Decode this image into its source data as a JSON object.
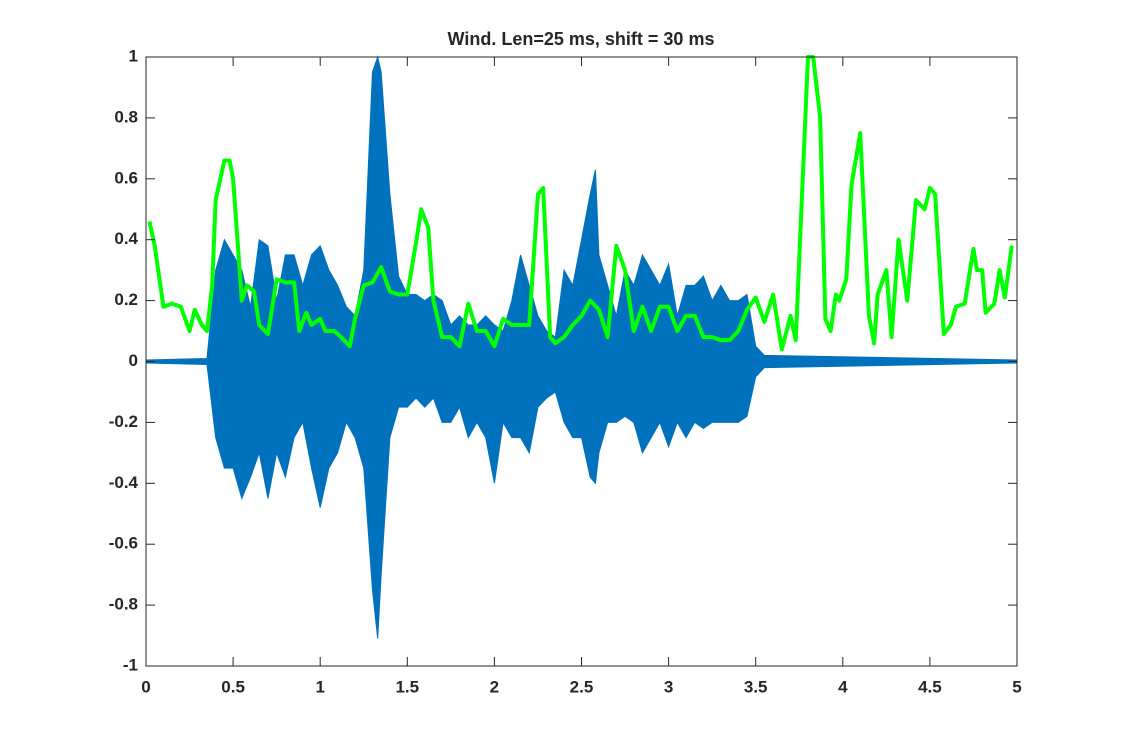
{
  "chart_data": {
    "type": "line",
    "title": "Wind. Len=25 ms, shift = 30 ms",
    "xlim": [
      0,
      5
    ],
    "ylim": [
      -1,
      1
    ],
    "xticks": [
      0,
      0.5,
      1,
      1.5,
      2,
      2.5,
      3,
      3.5,
      4,
      4.5,
      5
    ],
    "yticks": [
      -1,
      -0.8,
      -0.6,
      -0.4,
      -0.2,
      0,
      0.2,
      0.4,
      0.6,
      0.8,
      1
    ],
    "series": [
      {
        "style": "envelope",
        "color": "#0072bd",
        "x": [
          0,
          0.35,
          0.4,
          0.45,
          0.5,
          0.55,
          0.6,
          0.65,
          0.7,
          0.75,
          0.8,
          0.85,
          0.9,
          0.95,
          1.0,
          1.05,
          1.1,
          1.15,
          1.2,
          1.25,
          1.3,
          1.33,
          1.35,
          1.4,
          1.45,
          1.5,
          1.55,
          1.6,
          1.65,
          1.7,
          1.75,
          1.8,
          1.85,
          1.9,
          1.95,
          2.0,
          2.05,
          2.1,
          2.15,
          2.2,
          2.25,
          2.3,
          2.35,
          2.4,
          2.45,
          2.5,
          2.55,
          2.58,
          2.6,
          2.65,
          2.7,
          2.75,
          2.8,
          2.85,
          2.9,
          2.95,
          3.0,
          3.05,
          3.1,
          3.15,
          3.2,
          3.25,
          3.3,
          3.35,
          3.4,
          3.45,
          3.5,
          3.55,
          5.0
        ],
        "upper": [
          0.005,
          0.01,
          0.3,
          0.4,
          0.35,
          0.3,
          0.18,
          0.4,
          0.38,
          0.2,
          0.35,
          0.35,
          0.25,
          0.35,
          0.38,
          0.3,
          0.25,
          0.18,
          0.15,
          0.3,
          0.95,
          1.0,
          0.95,
          0.55,
          0.28,
          0.22,
          0.22,
          0.2,
          0.22,
          0.2,
          0.12,
          0.15,
          0.12,
          0.12,
          0.15,
          0.12,
          0.1,
          0.2,
          0.35,
          0.25,
          0.15,
          0.1,
          0.08,
          0.3,
          0.25,
          0.4,
          0.55,
          0.63,
          0.35,
          0.25,
          0.15,
          0.3,
          0.25,
          0.35,
          0.3,
          0.25,
          0.32,
          0.15,
          0.25,
          0.25,
          0.28,
          0.2,
          0.25,
          0.2,
          0.2,
          0.22,
          0.05,
          0.02,
          0.005
        ],
        "lower": [
          -0.005,
          -0.01,
          -0.25,
          -0.35,
          -0.35,
          -0.45,
          -0.38,
          -0.3,
          -0.45,
          -0.3,
          -0.38,
          -0.25,
          -0.2,
          -0.35,
          -0.48,
          -0.35,
          -0.3,
          -0.2,
          -0.25,
          -0.35,
          -0.75,
          -0.91,
          -0.7,
          -0.25,
          -0.15,
          -0.15,
          -0.12,
          -0.15,
          -0.12,
          -0.2,
          -0.2,
          -0.15,
          -0.25,
          -0.2,
          -0.25,
          -0.4,
          -0.2,
          -0.25,
          -0.25,
          -0.3,
          -0.15,
          -0.12,
          -0.1,
          -0.2,
          -0.25,
          -0.25,
          -0.38,
          -0.4,
          -0.3,
          -0.2,
          -0.2,
          -0.18,
          -0.2,
          -0.3,
          -0.25,
          -0.2,
          -0.28,
          -0.2,
          -0.25,
          -0.2,
          -0.22,
          -0.2,
          -0.2,
          -0.2,
          -0.2,
          -0.18,
          -0.05,
          -0.02,
          -0.005
        ]
      },
      {
        "style": "line",
        "color": "#00ff00",
        "x": [
          0.02,
          0.05,
          0.1,
          0.15,
          0.2,
          0.25,
          0.28,
          0.32,
          0.35,
          0.38,
          0.4,
          0.45,
          0.48,
          0.5,
          0.55,
          0.58,
          0.62,
          0.65,
          0.7,
          0.75,
          0.8,
          0.85,
          0.88,
          0.92,
          0.95,
          1.0,
          1.03,
          1.08,
          1.12,
          1.17,
          1.2,
          1.25,
          1.3,
          1.35,
          1.4,
          1.45,
          1.5,
          1.55,
          1.58,
          1.62,
          1.65,
          1.7,
          1.75,
          1.8,
          1.85,
          1.9,
          1.95,
          2.0,
          2.05,
          2.1,
          2.15,
          2.2,
          2.25,
          2.28,
          2.32,
          2.35,
          2.4,
          2.45,
          2.5,
          2.55,
          2.6,
          2.65,
          2.7,
          2.75,
          2.8,
          2.85,
          2.9,
          2.95,
          3.0,
          3.05,
          3.1,
          3.15,
          3.2,
          3.25,
          3.3,
          3.35,
          3.4,
          3.45,
          3.5,
          3.55,
          3.6,
          3.65,
          3.7,
          3.73,
          3.8,
          3.83,
          3.87,
          3.9,
          3.93,
          3.96,
          3.98,
          4.02,
          4.05,
          4.1,
          4.15,
          4.18,
          4.2,
          4.25,
          4.28,
          4.32,
          4.37,
          4.42,
          4.47,
          4.5,
          4.53,
          4.58,
          4.62,
          4.65,
          4.7,
          4.75,
          4.77,
          4.8,
          4.82,
          4.87,
          4.9,
          4.93,
          4.97
        ],
        "values": [
          0.46,
          0.38,
          0.18,
          0.19,
          0.18,
          0.1,
          0.17,
          0.12,
          0.1,
          0.25,
          0.53,
          0.66,
          0.66,
          0.6,
          0.2,
          0.25,
          0.23,
          0.12,
          0.09,
          0.27,
          0.26,
          0.26,
          0.1,
          0.16,
          0.12,
          0.14,
          0.1,
          0.1,
          0.08,
          0.05,
          0.14,
          0.25,
          0.26,
          0.31,
          0.23,
          0.22,
          0.22,
          0.39,
          0.5,
          0.44,
          0.2,
          0.08,
          0.08,
          0.05,
          0.19,
          0.1,
          0.1,
          0.05,
          0.14,
          0.12,
          0.12,
          0.12,
          0.55,
          0.57,
          0.08,
          0.06,
          0.08,
          0.12,
          0.15,
          0.2,
          0.17,
          0.08,
          0.38,
          0.3,
          0.1,
          0.18,
          0.1,
          0.18,
          0.18,
          0.1,
          0.15,
          0.15,
          0.08,
          0.08,
          0.07,
          0.07,
          0.1,
          0.17,
          0.21,
          0.13,
          0.22,
          0.04,
          0.15,
          0.07,
          1.0,
          1.0,
          0.8,
          0.14,
          0.1,
          0.22,
          0.2,
          0.27,
          0.58,
          0.75,
          0.15,
          0.06,
          0.22,
          0.3,
          0.08,
          0.4,
          0.2,
          0.53,
          0.5,
          0.57,
          0.55,
          0.09,
          0.12,
          0.18,
          0.19,
          0.37,
          0.3,
          0.3,
          0.16,
          0.19,
          0.3,
          0.21,
          0.38
        ]
      }
    ]
  }
}
